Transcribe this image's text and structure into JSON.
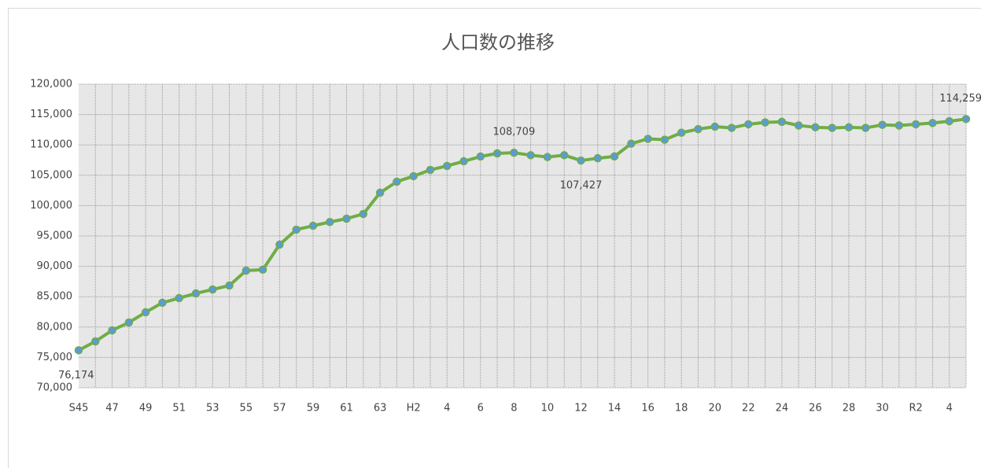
{
  "chart_data": {
    "type": "line",
    "title": "人口数の推移",
    "categories": [
      "S45",
      null,
      "47",
      null,
      "49",
      null,
      "51",
      null,
      "53",
      null,
      "55",
      null,
      "57",
      null,
      "59",
      null,
      "61",
      null,
      "63",
      null,
      "H2",
      null,
      "4",
      null,
      "6",
      null,
      "8",
      null,
      "10",
      null,
      "12",
      null,
      "14",
      null,
      "16",
      null,
      "18",
      null,
      "20",
      null,
      "22",
      null,
      "24",
      null,
      "26",
      null,
      "28",
      null,
      "30",
      null,
      "R2",
      null,
      "4",
      null
    ],
    "values": [
      76174,
      77640,
      79460,
      80750,
      82430,
      84000,
      84770,
      85540,
      86190,
      86840,
      89300,
      89450,
      93570,
      96040,
      96680,
      97300,
      97850,
      98630,
      102120,
      103940,
      104850,
      105880,
      106530,
      107300,
      108080,
      108600,
      108709,
      108300,
      108000,
      108300,
      107427,
      107800,
      108100,
      110200,
      111000,
      110850,
      112000,
      112600,
      113000,
      112800,
      113400,
      113700,
      113800,
      113200,
      112900,
      112800,
      112900,
      112800,
      113300,
      113200,
      113400,
      113600,
      113900,
      114259
    ],
    "value_labels": [
      "76,174",
      null,
      null,
      null,
      null,
      null,
      null,
      null,
      null,
      null,
      null,
      null,
      null,
      null,
      null,
      null,
      null,
      null,
      null,
      null,
      null,
      null,
      null,
      null,
      null,
      null,
      "108,709",
      null,
      null,
      null,
      "107,427",
      null,
      null,
      null,
      null,
      null,
      null,
      null,
      null,
      null,
      null,
      null,
      null,
      null,
      null,
      null,
      null,
      null,
      null,
      null,
      null,
      null,
      null,
      "114,259"
    ],
    "color": "#70ad47",
    "marker_color": "#5b9bd5",
    "ylim": [
      70000,
      120000
    ],
    "yticks": [
      {
        "value": 70000,
        "label": "70,000"
      },
      {
        "value": 75000,
        "label": "75,000"
      },
      {
        "value": 80000,
        "label": "80,000"
      },
      {
        "value": 85000,
        "label": "85,000"
      },
      {
        "value": 90000,
        "label": "90,000"
      },
      {
        "value": 95000,
        "label": "95,000"
      },
      {
        "value": 100000,
        "label": "100,000"
      },
      {
        "value": 105000,
        "label": "105,000"
      },
      {
        "value": 110000,
        "label": "110,000"
      },
      {
        "value": 115000,
        "label": "115,000"
      },
      {
        "value": 120000,
        "label": "120,000"
      }
    ],
    "grid": true
  }
}
